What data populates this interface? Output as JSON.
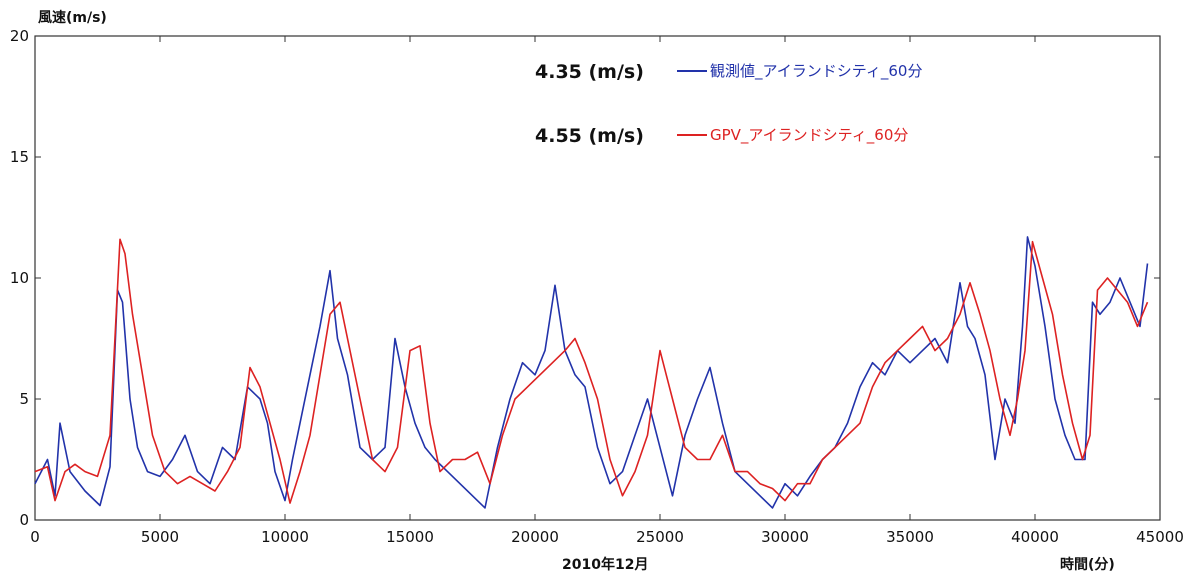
{
  "chart_data": {
    "type": "line",
    "xlabel": "時間(分)",
    "xlabel_sub": "2010年12月",
    "ylabel": "風速(m/s)",
    "xlim": [
      0,
      45000
    ],
    "ylim": [
      0,
      20
    ],
    "x_ticks": [
      0,
      5000,
      10000,
      15000,
      20000,
      25000,
      30000,
      35000,
      40000,
      45000
    ],
    "y_ticks": [
      0,
      5,
      10,
      15,
      20
    ],
    "grid": false,
    "legend_position": "top-center",
    "series": [
      {
        "name": "観測値_アイランドシティ_60分",
        "mean_label": "4.35 (m/s)",
        "color": "#2233aa",
        "x": [
          0,
          500,
          800,
          1000,
          1400,
          2000,
          2600,
          3000,
          3300,
          3500,
          3800,
          4100,
          4500,
          5000,
          5500,
          6000,
          6500,
          7000,
          7500,
          8000,
          8500,
          9000,
          9300,
          9600,
          10000,
          10300,
          10600,
          11000,
          11400,
          11800,
          12100,
          12500,
          13000,
          13500,
          14000,
          14400,
          14800,
          15200,
          15600,
          16000,
          16500,
          17000,
          17500,
          18000,
          18500,
          19000,
          19500,
          20000,
          20400,
          20800,
          21200,
          21600,
          22000,
          22500,
          23000,
          23500,
          24000,
          24500,
          25000,
          25500,
          26000,
          26500,
          27000,
          27500,
          28000,
          28500,
          29000,
          29500,
          30000,
          30500,
          31000,
          31500,
          32000,
          32500,
          33000,
          33500,
          34000,
          34500,
          35000,
          35500,
          36000,
          36500,
          37000,
          37300,
          37600,
          38000,
          38400,
          38800,
          39200,
          39500,
          39700,
          40000,
          40400,
          40800,
          41200,
          41600,
          42000,
          42300,
          42600,
          43000,
          43400,
          43800,
          44200,
          44500
        ],
        "y": [
          1.5,
          2.5,
          1.0,
          4.0,
          2.0,
          1.2,
          0.6,
          2.2,
          9.5,
          9.0,
          5.0,
          3.0,
          2.0,
          1.8,
          2.5,
          3.5,
          2.0,
          1.5,
          3.0,
          2.5,
          5.5,
          5.0,
          4.0,
          2.0,
          0.8,
          2.5,
          4.0,
          6.0,
          8.0,
          10.3,
          7.5,
          6.0,
          3.0,
          2.5,
          3.0,
          7.5,
          5.5,
          4.0,
          3.0,
          2.5,
          2.0,
          1.5,
          1.0,
          0.5,
          3.0,
          5.0,
          6.5,
          6.0,
          7.0,
          9.7,
          7.0,
          6.0,
          5.5,
          3.0,
          1.5,
          2.0,
          3.5,
          5.0,
          3.0,
          1.0,
          3.5,
          5.0,
          6.3,
          4.0,
          2.0,
          1.5,
          1.0,
          0.5,
          1.5,
          1.0,
          1.8,
          2.5,
          3.0,
          4.0,
          5.5,
          6.5,
          6.0,
          7.0,
          6.5,
          7.0,
          7.5,
          6.5,
          9.8,
          8.0,
          7.5,
          6.0,
          2.5,
          5.0,
          4.0,
          8.0,
          11.7,
          10.5,
          8.0,
          5.0,
          3.5,
          2.5,
          2.5,
          9.0,
          8.5,
          9.0,
          10.0,
          9.0,
          8.0,
          10.6
        ]
      },
      {
        "name": "GPV_アイランドシティ_60分",
        "mean_label": "4.55 (m/s)",
        "color": "#dd2222",
        "x": [
          0,
          500,
          800,
          1200,
          1600,
          2000,
          2500,
          3000,
          3400,
          3600,
          3900,
          4300,
          4700,
          5200,
          5700,
          6200,
          6700,
          7200,
          7700,
          8200,
          8600,
          9000,
          9400,
          9800,
          10200,
          10600,
          11000,
          11400,
          11800,
          12200,
          12600,
          13000,
          13500,
          14000,
          14500,
          15000,
          15400,
          15800,
          16200,
          16700,
          17200,
          17700,
          18200,
          18700,
          19200,
          19700,
          20200,
          20700,
          21200,
          21600,
          22000,
          22500,
          23000,
          23500,
          24000,
          24500,
          25000,
          25500,
          26000,
          26500,
          27000,
          27500,
          28000,
          28500,
          29000,
          29500,
          30000,
          30500,
          31000,
          31500,
          32000,
          32500,
          33000,
          33500,
          34000,
          34500,
          35000,
          35500,
          36000,
          36500,
          37000,
          37400,
          37800,
          38200,
          38600,
          39000,
          39300,
          39600,
          39900,
          40300,
          40700,
          41100,
          41500,
          41900,
          42200,
          42500,
          42900,
          43300,
          43700,
          44100,
          44500
        ],
        "y": [
          2.0,
          2.2,
          0.8,
          2.0,
          2.3,
          2.0,
          1.8,
          3.5,
          11.6,
          11.0,
          8.5,
          6.0,
          3.5,
          2.0,
          1.5,
          1.8,
          1.5,
          1.2,
          2.0,
          3.0,
          6.3,
          5.5,
          4.0,
          2.5,
          0.7,
          2.0,
          3.5,
          6.0,
          8.5,
          9.0,
          7.0,
          5.0,
          2.5,
          2.0,
          3.0,
          7.0,
          7.2,
          4.0,
          2.0,
          2.5,
          2.5,
          2.8,
          1.5,
          3.5,
          5.0,
          5.5,
          6.0,
          6.5,
          7.0,
          7.5,
          6.5,
          5.0,
          2.5,
          1.0,
          2.0,
          3.5,
          7.0,
          5.0,
          3.0,
          2.5,
          2.5,
          3.5,
          2.0,
          2.0,
          1.5,
          1.3,
          0.8,
          1.5,
          1.5,
          2.5,
          3.0,
          3.5,
          4.0,
          5.5,
          6.5,
          7.0,
          7.5,
          8.0,
          7.0,
          7.5,
          8.5,
          9.8,
          8.5,
          7.0,
          5.0,
          3.5,
          5.0,
          7.0,
          11.5,
          10.0,
          8.5,
          6.0,
          4.0,
          2.5,
          3.5,
          9.5,
          10.0,
          9.5,
          9.0,
          8.0,
          9.0
        ]
      }
    ]
  }
}
